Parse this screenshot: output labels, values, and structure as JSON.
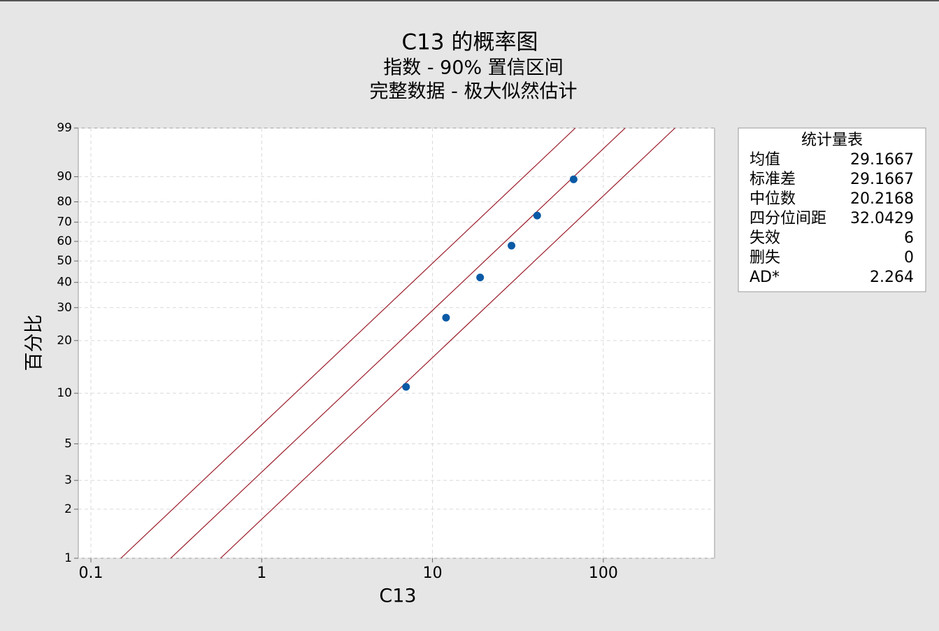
{
  "chart_data": {
    "type": "probability",
    "title": "C13 的概率图",
    "subtitle": [
      "指数 - 90% 置信区间",
      "完整数据 - 极大似然估计"
    ],
    "x_label": "C13",
    "y_label": "百分比",
    "x_log": true,
    "y_scale": "exponential",
    "xlim": [
      0.0844,
      448
    ],
    "xticks": [
      0.1,
      1,
      10,
      100
    ],
    "ylim": [
      1,
      99
    ],
    "yticks": [
      1,
      2,
      3,
      5,
      10,
      20,
      30,
      40,
      50,
      60,
      70,
      80,
      90,
      99
    ],
    "grid": true,
    "points": {
      "color": "#0b5aa6",
      "x": [
        7,
        12,
        19,
        29,
        41,
        67
      ],
      "values": [
        10.9,
        26.6,
        42.2,
        57.8,
        73.4,
        89.1
      ]
    },
    "fit_lines": [
      {
        "color": "#9b1c2a",
        "scale": 14.9
      },
      {
        "color": "#9b1c2a",
        "scale": 29.1667
      },
      {
        "color": "#9b1c2a",
        "scale": 57.1
      }
    ],
    "stats": {
      "title": "统计量表",
      "rows": [
        [
          "均值",
          29.1667
        ],
        [
          "标准差",
          29.1667
        ],
        [
          "中位数",
          20.2168
        ],
        [
          "四分位间距",
          32.0429
        ],
        [
          "失效",
          6
        ],
        [
          "删失",
          0
        ],
        [
          "AD*",
          2.264
        ]
      ]
    }
  }
}
